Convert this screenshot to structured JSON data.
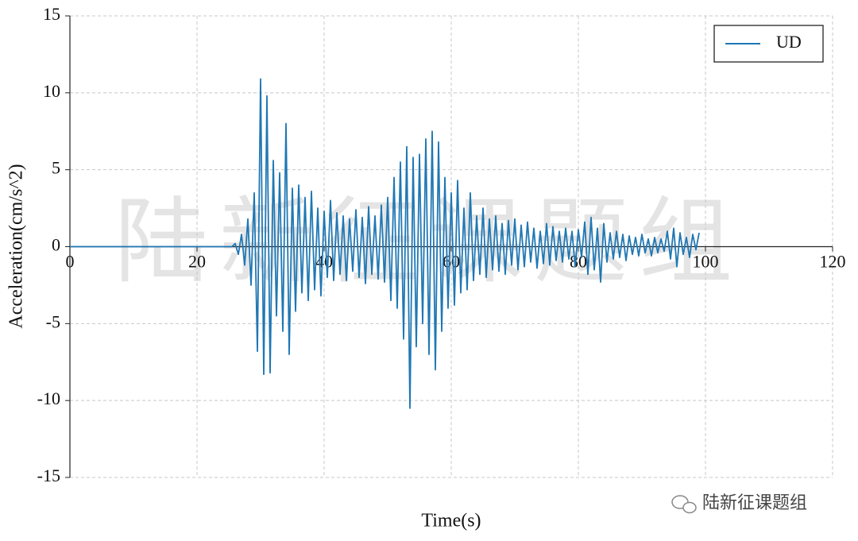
{
  "chart_data": {
    "type": "line",
    "xlabel": "Time(s)",
    "ylabel": "Acceleration(cm/s^2)",
    "watermark": "陆新征课题组",
    "footer": "陆新征课题组",
    "x": [
      0,
      25.5,
      26,
      26.5,
      27,
      27.5,
      28,
      28.5,
      29,
      29.5,
      30,
      30.5,
      31,
      31.5,
      32,
      32.5,
      33,
      33.5,
      34,
      34.5,
      35,
      35.5,
      36,
      36.5,
      37,
      37.5,
      38,
      38.5,
      39,
      39.5,
      40,
      40.5,
      41,
      41.5,
      42,
      42.5,
      43,
      43.5,
      44,
      44.5,
      45,
      45.5,
      46,
      46.5,
      47,
      47.5,
      48,
      48.5,
      49,
      49.5,
      50,
      50.5,
      51,
      51.5,
      52,
      52.5,
      53,
      53.5,
      54,
      54.5,
      55,
      55.5,
      56,
      56.5,
      57,
      57.5,
      58,
      58.5,
      59,
      59.5,
      60,
      60.5,
      61,
      61.5,
      62,
      62.5,
      63,
      63.5,
      64,
      64.5,
      65,
      65.5,
      66,
      66.5,
      67,
      67.5,
      68,
      68.5,
      69,
      69.5,
      70,
      70.5,
      71,
      71.5,
      72,
      72.5,
      73,
      73.5,
      74,
      74.5,
      75,
      75.5,
      76,
      76.5,
      77,
      77.5,
      78,
      78.5,
      79,
      79.5,
      80,
      80.5,
      81,
      81.5,
      82,
      82.5,
      83,
      83.5,
      84,
      84.5,
      85,
      85.5,
      86,
      86.5,
      87,
      87.5,
      88,
      88.5,
      89,
      89.5,
      90,
      90.5,
      91,
      91.5,
      92,
      92.5,
      93,
      93.5,
      94,
      94.5,
      95,
      95.5,
      96,
      96.5,
      97,
      97.5,
      98,
      98.5,
      99
    ],
    "series": [
      {
        "name": "UD",
        "color": "#1f77b4",
        "values": [
          0,
          0,
          0.2,
          -0.5,
          0.8,
          -1.2,
          1.8,
          -2.5,
          3.5,
          -6.8,
          10.9,
          -8.3,
          9.8,
          -8.2,
          5.6,
          -4.5,
          4.8,
          -5.5,
          8.0,
          -7.0,
          3.8,
          -4.2,
          4.0,
          -3.0,
          3.2,
          -3.5,
          3.6,
          -2.8,
          2.5,
          -3.2,
          2.3,
          -2.0,
          3.0,
          -2.2,
          2.2,
          -1.8,
          2.0,
          -2.2,
          1.8,
          -1.6,
          2.4,
          -2.0,
          1.9,
          -2.4,
          2.6,
          -1.8,
          2.0,
          -2.1,
          2.7,
          -2.3,
          3.2,
          -3.5,
          4.5,
          -4.0,
          5.5,
          -6.0,
          6.5,
          -10.5,
          5.8,
          -6.5,
          6.0,
          -5.0,
          7.0,
          -7.0,
          7.5,
          -8.0,
          6.8,
          -5.5,
          4.5,
          -4.0,
          3.5,
          -3.8,
          4.3,
          -3.0,
          2.5,
          -2.8,
          3.5,
          -2.2,
          2.0,
          -1.8,
          2.5,
          -2.0,
          1.8,
          -1.5,
          2.0,
          -1.6,
          1.5,
          -1.8,
          1.7,
          -1.2,
          1.8,
          -1.5,
          1.4,
          -1.3,
          1.6,
          -1.0,
          1.2,
          -1.4,
          1.0,
          -1.1,
          1.5,
          -1.2,
          1.3,
          -0.9,
          1.0,
          -1.0,
          1.2,
          -0.8,
          1.0,
          -1.3,
          1.1,
          -0.7,
          1.6,
          -1.8,
          1.9,
          -1.5,
          1.2,
          -2.3,
          1.5,
          -1.0,
          0.9,
          -0.8,
          1.0,
          -0.7,
          0.8,
          -0.9,
          0.7,
          -0.5,
          0.6,
          -0.6,
          0.8,
          -0.4,
          0.5,
          -0.6,
          0.6,
          -0.4,
          0.5,
          -0.3,
          1.0,
          -0.8,
          1.2,
          -1.3,
          0.9,
          -0.5,
          0.6,
          -0.7,
          0.8,
          -0.2,
          0.9
        ]
      }
    ],
    "xlim": [
      0,
      120
    ],
    "xticks": [
      0,
      20,
      40,
      60,
      80,
      100,
      120
    ],
    "ylim": [
      -15,
      15
    ],
    "yticks": [
      -15,
      -10,
      -5,
      0,
      5,
      10,
      15
    ],
    "grid": true,
    "legend": "upper right"
  }
}
